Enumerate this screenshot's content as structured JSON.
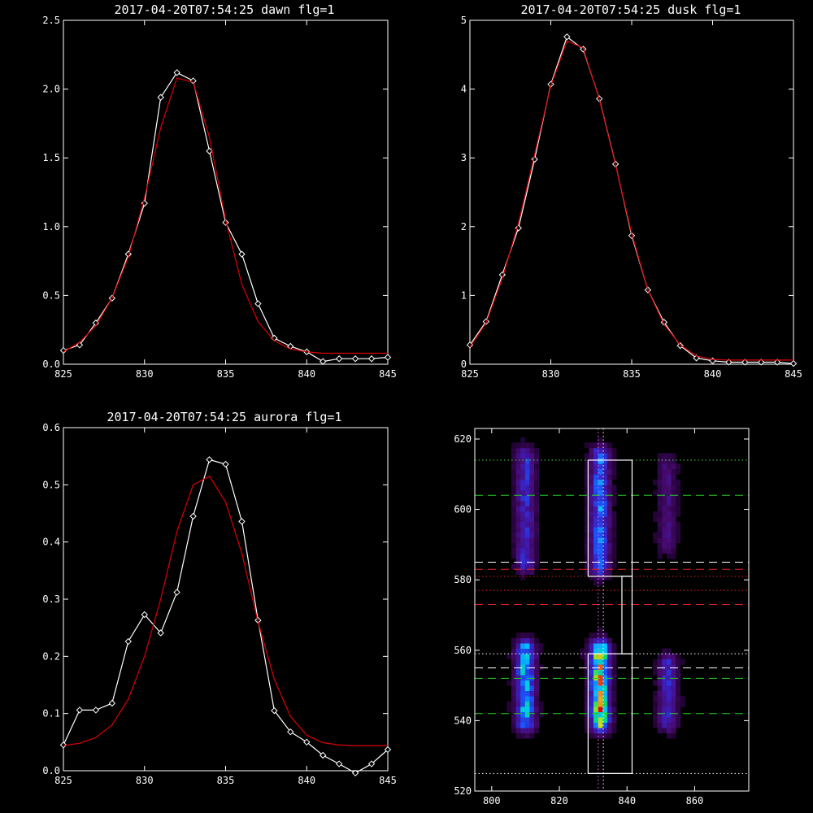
{
  "chart_data": [
    {
      "type": "line",
      "title": "2017-04-20T07:54:25 dawn flg=1",
      "xlim": [
        825,
        845
      ],
      "ylim": [
        0,
        2.5
      ],
      "xticks": [
        "825",
        "830",
        "835",
        "840",
        "845"
      ],
      "yticks": [
        "0.0",
        "0.5",
        "1.0",
        "1.5",
        "2.0",
        "2.5"
      ],
      "series": [
        {
          "color": "#ffffff",
          "markers": "diamond",
          "x": [
            825,
            826,
            827,
            828,
            829,
            830,
            831,
            832,
            833,
            834,
            835,
            836,
            837,
            838,
            839,
            840,
            841,
            842,
            843,
            844,
            845
          ],
          "y": [
            0.1,
            0.14,
            0.3,
            0.48,
            0.8,
            1.17,
            1.94,
            2.12,
            2.06,
            1.55,
            1.03,
            0.8,
            0.44,
            0.19,
            0.13,
            0.09,
            0.02,
            0.04,
            0.04,
            0.04,
            0.05
          ]
        },
        {
          "color": "#dd0000",
          "markers": "none",
          "x": [
            825,
            826,
            827,
            828,
            829,
            830,
            831,
            832,
            833,
            834,
            835,
            836,
            837,
            838,
            839,
            840,
            841,
            842,
            843,
            844,
            845
          ],
          "y": [
            0.09,
            0.16,
            0.28,
            0.48,
            0.78,
            1.21,
            1.72,
            2.08,
            2.05,
            1.65,
            1.05,
            0.58,
            0.31,
            0.17,
            0.11,
            0.09,
            0.08,
            0.08,
            0.08,
            0.08,
            0.08
          ]
        }
      ]
    },
    {
      "type": "line",
      "title": "2017-04-20T07:54:25 dusk flg=1",
      "xlim": [
        825,
        845
      ],
      "ylim": [
        0,
        5
      ],
      "xticks": [
        "825",
        "830",
        "835",
        "840",
        "845"
      ],
      "yticks": [
        "0",
        "1",
        "2",
        "3",
        "4",
        "5"
      ],
      "series": [
        {
          "color": "#ffffff",
          "markers": "diamond",
          "x": [
            825,
            826,
            827,
            828,
            829,
            830,
            831,
            832,
            833,
            834,
            835,
            836,
            837,
            838,
            839,
            840,
            841,
            842,
            843,
            844,
            845
          ],
          "y": [
            0.28,
            0.62,
            1.3,
            1.98,
            2.98,
            4.07,
            4.76,
            4.58,
            3.86,
            2.91,
            1.87,
            1.08,
            0.61,
            0.27,
            0.09,
            0.05,
            0.03,
            0.03,
            0.03,
            0.03,
            0.01
          ]
        },
        {
          "color": "#dd0000",
          "markers": "none",
          "x": [
            825,
            826,
            827,
            828,
            829,
            830,
            831,
            832,
            833,
            834,
            835,
            836,
            837,
            838,
            839,
            840,
            841,
            842,
            843,
            844,
            845
          ],
          "y": [
            0.25,
            0.6,
            1.25,
            2.05,
            3.05,
            4.05,
            4.7,
            4.6,
            3.85,
            2.9,
            1.9,
            1.08,
            0.58,
            0.28,
            0.12,
            0.07,
            0.06,
            0.06,
            0.06,
            0.06,
            0.06
          ]
        }
      ]
    },
    {
      "type": "line",
      "title": "2017-04-20T07:54:25 aurora flg=1",
      "xlim": [
        825,
        845
      ],
      "ylim": [
        0,
        0.6
      ],
      "xticks": [
        "825",
        "830",
        "835",
        "840",
        "845"
      ],
      "yticks": [
        "0.0",
        "0.1",
        "0.2",
        "0.3",
        "0.4",
        "0.5",
        "0.6"
      ],
      "series": [
        {
          "color": "#ffffff",
          "markers": "diamond",
          "x": [
            825,
            826,
            827,
            828,
            829,
            830,
            831,
            832,
            833,
            834,
            835,
            836,
            837,
            838,
            839,
            840,
            841,
            842,
            843,
            844,
            845
          ],
          "y": [
            0.045,
            0.106,
            0.106,
            0.118,
            0.226,
            0.273,
            0.241,
            0.312,
            0.445,
            0.544,
            0.536,
            0.436,
            0.263,
            0.105,
            0.068,
            0.05,
            0.027,
            0.012,
            -0.004,
            0.012,
            0.037
          ]
        },
        {
          "color": "#dd0000",
          "markers": "none",
          "x": [
            825,
            826,
            827,
            828,
            829,
            830,
            831,
            832,
            833,
            834,
            835,
            836,
            837,
            838,
            839,
            840,
            841,
            842,
            843,
            844,
            845
          ],
          "y": [
            0.044,
            0.048,
            0.058,
            0.08,
            0.125,
            0.2,
            0.3,
            0.418,
            0.5,
            0.515,
            0.47,
            0.38,
            0.26,
            0.16,
            0.095,
            0.062,
            0.049,
            0.045,
            0.044,
            0.044,
            0.044
          ]
        }
      ]
    },
    {
      "type": "heatmap",
      "title": "",
      "xlim": [
        795,
        876
      ],
      "ylim": [
        520,
        623
      ],
      "xticks": [
        "800",
        "820",
        "840",
        "860"
      ],
      "yticks": [
        "520",
        "540",
        "560",
        "580",
        "600",
        "620"
      ],
      "colormap": "rainbow",
      "emission_columns": [
        {
          "x": 810,
          "y_ranges": [
            [
              540,
              560
            ],
            [
              585,
              615
            ]
          ],
          "peak": 0.7
        },
        {
          "x": 832,
          "y_ranges": [
            [
              540,
              560
            ],
            [
              584,
              615
            ]
          ],
          "peak": 1.0
        },
        {
          "x": 852,
          "y_ranges": [
            [
              540,
              556
            ],
            [
              590,
              612
            ]
          ],
          "peak": 0.35
        }
      ],
      "boxes": [
        {
          "x": [
            828.5,
            841.5
          ],
          "y": [
            581,
            614
          ]
        },
        {
          "x": [
            838.5,
            841.5
          ],
          "y": [
            559,
            581
          ]
        },
        {
          "x": [
            828.5,
            841.5
          ],
          "y": [
            525,
            559
          ]
        }
      ],
      "hlines": [
        {
          "y": 614,
          "color": "#44dd44",
          "style": "dotted"
        },
        {
          "y": 604,
          "color": "#22cc22",
          "style": "dashed"
        },
        {
          "y": 585,
          "color": "#ffffff",
          "style": "dashed"
        },
        {
          "y": 583,
          "color": "#dd2222",
          "style": "dashed"
        },
        {
          "y": 581,
          "color": "#dd2222",
          "style": "dotted"
        },
        {
          "y": 577,
          "color": "#dd2222",
          "style": "dotted"
        },
        {
          "y": 573,
          "color": "#dd2222",
          "style": "dashed"
        },
        {
          "y": 559,
          "color": "#ffffff",
          "style": "dotted"
        },
        {
          "y": 555,
          "color": "#ffffff",
          "style": "dashed"
        },
        {
          "y": 552,
          "color": "#22cc22",
          "style": "dashed"
        },
        {
          "y": 542,
          "color": "#22cc22",
          "style": "dashed"
        },
        {
          "y": 525,
          "color": "#ffffff",
          "style": "dotted"
        }
      ],
      "vlines": [
        {
          "x": 831.5,
          "color": "#ff66ff",
          "style": "dotted"
        },
        {
          "x": 833,
          "color": "#ffffff",
          "style": "dotted"
        }
      ]
    }
  ]
}
